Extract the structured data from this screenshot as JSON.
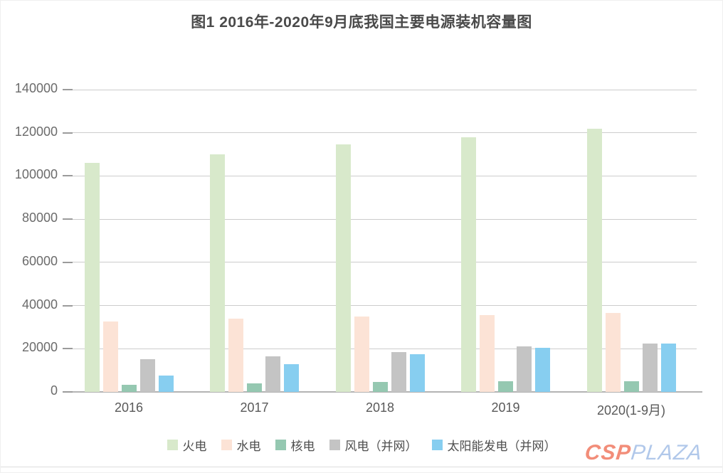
{
  "title": "图1 2016年-2020年9月底我国主要电源装机容量图",
  "watermark": {
    "csp": "CSP",
    "plaza": "PLAZA"
  },
  "chart_data": {
    "type": "bar",
    "title": "图1 2016年-2020年9月底我国主要电源装机容量图",
    "categories": [
      "2016",
      "2017",
      "2018",
      "2019",
      "2020(1-9月)"
    ],
    "series": [
      {
        "name": "火电",
        "color": "#d8e9cb",
        "values": [
          106000,
          110000,
          114500,
          118000,
          122000
        ]
      },
      {
        "name": "水电",
        "color": "#fce3d6",
        "values": [
          32500,
          34000,
          35000,
          35600,
          36500
        ]
      },
      {
        "name": "核电",
        "color": "#95c8b1",
        "values": [
          3400,
          3800,
          4500,
          4900,
          5000
        ]
      },
      {
        "name": "风电（并网）",
        "color": "#c4c4c4",
        "values": [
          15000,
          16400,
          18400,
          21000,
          22300
        ]
      },
      {
        "name": "太阳能发电（并网）",
        "color": "#87cef0",
        "values": [
          7700,
          13000,
          17500,
          20400,
          22300
        ]
      }
    ],
    "xlabel": "",
    "ylabel": "",
    "ylim": [
      0,
      140000
    ],
    "ytick_step": 20000,
    "yticks": [
      "0",
      "20000",
      "40000",
      "60000",
      "80000",
      "100000",
      "120000",
      "140000"
    ],
    "grid": true,
    "legend_position": "bottom"
  }
}
